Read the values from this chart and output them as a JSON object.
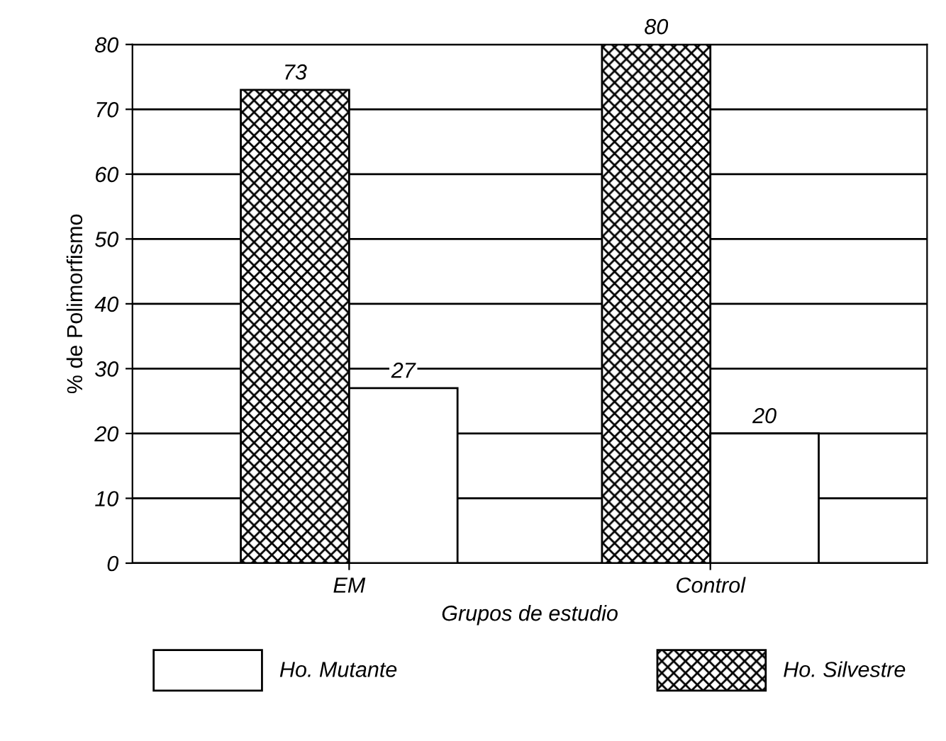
{
  "chart_data": {
    "type": "bar",
    "xlabel": "Grupos de estudio",
    "ylabel": "% de Polimorfismo",
    "categories": [
      "EM",
      "Control"
    ],
    "series": [
      {
        "name": "Ho. Silvestre",
        "color": "#000000",
        "values": [
          73,
          80
        ]
      },
      {
        "name": "Ho. Mutante",
        "color": "#ffffff",
        "values": [
          27,
          20
        ]
      }
    ],
    "ylim": [
      0,
      80
    ],
    "yticks": [
      0,
      10,
      20,
      30,
      40,
      50,
      60,
      70,
      80
    ],
    "grid": "y",
    "legend": "bottom",
    "data_labels": true
  }
}
